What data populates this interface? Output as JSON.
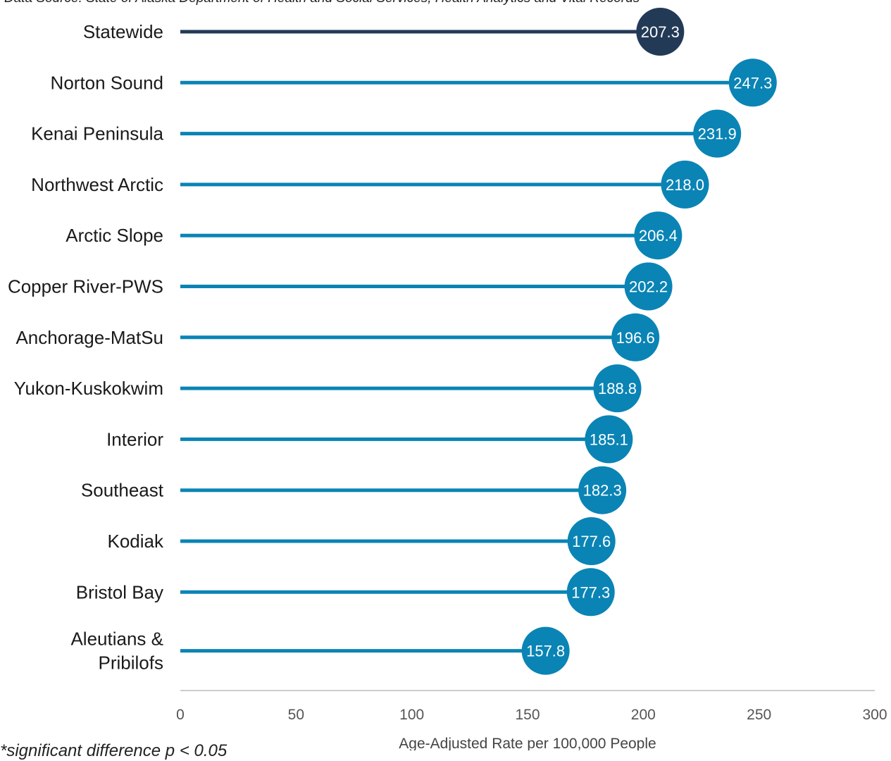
{
  "source_note": "Data Source: State of Alaska Department of Health and Social Services, Health Analytics and Vital Records",
  "footnote": "*significant difference p < 0.05",
  "colors": {
    "statewide": "#233a57",
    "region": "#0a84b5",
    "axis": "#cccccc"
  },
  "chart_data": {
    "type": "bar",
    "orientation": "horizontal",
    "style": "lollipop",
    "categories": [
      "Statewide",
      "Norton Sound",
      "Kenai Peninsula",
      "Northwest Arctic",
      "Arctic Slope",
      "Copper River-PWS",
      "Anchorage-MatSu",
      "Yukon-Kuskokwim",
      "Interior",
      "Southeast",
      "Kodiak",
      "Bristol Bay",
      "Aleutians & Pribilofs"
    ],
    "category_lines": [
      [
        "Statewide"
      ],
      [
        "Norton Sound"
      ],
      [
        "Kenai Peninsula"
      ],
      [
        "Northwest Arctic"
      ],
      [
        "Arctic Slope"
      ],
      [
        "Copper River-PWS"
      ],
      [
        "Anchorage-MatSu"
      ],
      [
        "Yukon-Kuskokwim"
      ],
      [
        "Interior"
      ],
      [
        "Southeast"
      ],
      [
        "Kodiak"
      ],
      [
        "Bristol Bay"
      ],
      [
        "Aleutians &",
        "Pribilofs"
      ]
    ],
    "values": [
      207.3,
      247.3,
      231.9,
      218.0,
      206.4,
      202.2,
      196.6,
      188.8,
      185.1,
      182.3,
      177.6,
      177.3,
      157.8
    ],
    "value_labels": [
      "207.3",
      "247.3",
      "231.9",
      "218.0",
      "206.4",
      "202.2",
      "196.6",
      "188.8",
      "185.1",
      "182.3",
      "177.6",
      "177.3",
      "157.8"
    ],
    "xlim": [
      0,
      300
    ],
    "xticks": [
      0,
      50,
      100,
      150,
      200,
      250,
      300
    ],
    "xtick_labels": [
      "0",
      "50",
      "100",
      "150",
      "200",
      "250",
      "300"
    ],
    "xlabel": "Age-Adjusted Rate per 100,000 People",
    "ylabel": "",
    "title": "",
    "grid": false,
    "highlight_category": "Statewide"
  }
}
